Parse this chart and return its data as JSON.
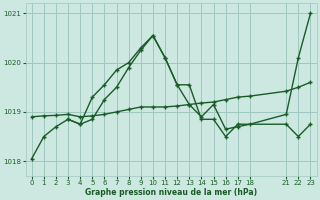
{
  "bg_color": "#cce8e0",
  "grid_color": "#a0c8c0",
  "line_color": "#1a5c28",
  "xlabel_text": "Graphe pression niveau de la mer (hPa)",
  "xlim": [
    -0.5,
    23.5
  ],
  "ylim": [
    1017.7,
    1021.2
  ],
  "yticks": [
    1018,
    1019,
    1020,
    1021
  ],
  "xticks": [
    0,
    1,
    2,
    3,
    4,
    5,
    6,
    7,
    8,
    9,
    10,
    11,
    12,
    13,
    14,
    15,
    16,
    17,
    18,
    21,
    22,
    23
  ],
  "series1_x": [
    0,
    1,
    2,
    3,
    4,
    5,
    6,
    7,
    8,
    9,
    10,
    11,
    12,
    13,
    14,
    15,
    16,
    17,
    18,
    21,
    22,
    23
  ],
  "series1_y": [
    1018.05,
    1018.5,
    1018.7,
    1018.85,
    1018.75,
    1019.3,
    1019.55,
    1019.85,
    1020.0,
    1020.3,
    1020.55,
    1020.1,
    1019.55,
    1019.15,
    1018.9,
    1019.15,
    1018.65,
    1018.7,
    1018.75,
    1018.95,
    1020.1,
    1021.0
  ],
  "series2_x": [
    0,
    1,
    2,
    3,
    4,
    5,
    6,
    7,
    8,
    9,
    10,
    11,
    12,
    13,
    14,
    15,
    16,
    17,
    18,
    21,
    22,
    23
  ],
  "series2_y": [
    1018.9,
    1018.92,
    1018.93,
    1018.95,
    1018.9,
    1018.92,
    1018.95,
    1019.0,
    1019.05,
    1019.1,
    1019.1,
    1019.1,
    1019.12,
    1019.15,
    1019.18,
    1019.2,
    1019.25,
    1019.3,
    1019.32,
    1019.42,
    1019.5,
    1019.6
  ],
  "series3_x": [
    3,
    4,
    5,
    6,
    7,
    8,
    9,
    10,
    11,
    12,
    13,
    14,
    15,
    16,
    17,
    21,
    22,
    23
  ],
  "series3_y": [
    1018.85,
    1018.75,
    1018.85,
    1019.25,
    1019.5,
    1019.9,
    1020.25,
    1020.55,
    1020.1,
    1019.55,
    1019.55,
    1018.85,
    1018.85,
    1018.5,
    1018.75,
    1018.75,
    1018.5,
    1018.75
  ]
}
